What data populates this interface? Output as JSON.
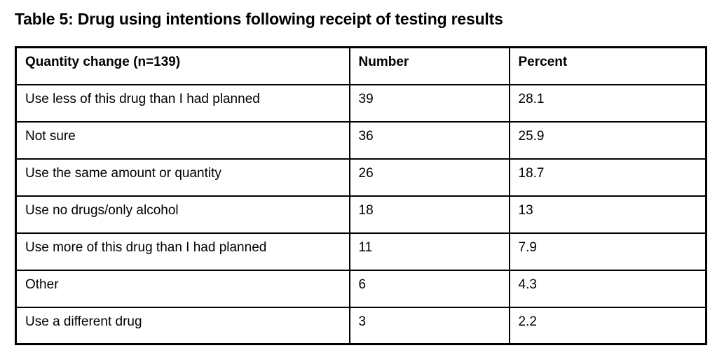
{
  "caption": "Table 5: Drug using intentions following receipt of testing results",
  "table": {
    "headers": [
      "Quantity change (n=139)",
      "Number",
      "Percent"
    ],
    "rows": [
      {
        "cells": [
          "Use less of this drug than I had planned",
          "39",
          "28.1"
        ]
      },
      {
        "cells": [
          "Not sure",
          "36",
          "25.9"
        ]
      },
      {
        "cells": [
          "Use the same amount or quantity",
          "26",
          "18.7"
        ]
      },
      {
        "cells": [
          "Use no drugs/only alcohol",
          "18",
          "13"
        ]
      },
      {
        "cells": [
          "Use more of this drug than I had planned",
          "11",
          "7.9"
        ]
      },
      {
        "cells": [
          "Other",
          "6",
          "4.3"
        ]
      },
      {
        "cells": [
          "Use a different drug",
          "3",
          "2.2"
        ]
      }
    ]
  },
  "colors": {
    "text": "#000000",
    "border": "#000000",
    "background": "#ffffff"
  }
}
